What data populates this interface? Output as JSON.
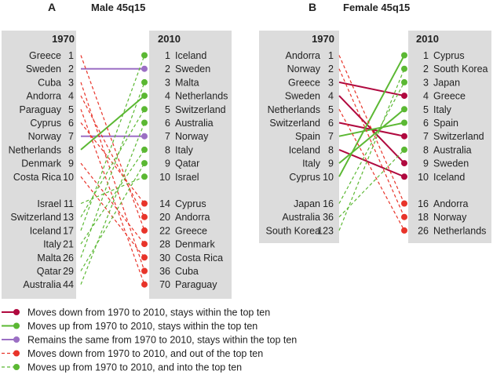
{
  "colors": {
    "panel_bg": "#dcdcdc",
    "dark_red": "#b0093f",
    "green": "#5bb833",
    "purple": "#9b6fc4",
    "red": "#e8342a"
  },
  "panels": [
    {
      "letter": "A",
      "title": "Male 45q15",
      "left_header": "1970",
      "right_header": "2010",
      "left_items": [
        {
          "name": "Greece",
          "rank": "1"
        },
        {
          "name": "Sweden",
          "rank": "2"
        },
        {
          "name": "Cuba",
          "rank": "3"
        },
        {
          "name": "Andorra",
          "rank": "4"
        },
        {
          "name": "Paraguay",
          "rank": "5"
        },
        {
          "name": "Cyprus",
          "rank": "6"
        },
        {
          "name": "Norway",
          "rank": "7"
        },
        {
          "name": "Netherlands",
          "rank": "8"
        },
        {
          "name": "Denmark",
          "rank": "9"
        },
        {
          "name": "Costa Rica",
          "rank": "10"
        },
        {
          "name": "Israel",
          "rank": "11"
        },
        {
          "name": "Switzerland",
          "rank": "13"
        },
        {
          "name": "Iceland",
          "rank": "17"
        },
        {
          "name": "Italy",
          "rank": "21"
        },
        {
          "name": "Malta",
          "rank": "26"
        },
        {
          "name": "Qatar",
          "rank": "29"
        },
        {
          "name": "Australia",
          "rank": "44"
        }
      ],
      "right_items": [
        {
          "rank": "1",
          "name": "Iceland"
        },
        {
          "rank": "2",
          "name": "Sweden"
        },
        {
          "rank": "3",
          "name": "Malta"
        },
        {
          "rank": "4",
          "name": "Netherlands"
        },
        {
          "rank": "5",
          "name": "Switzerland"
        },
        {
          "rank": "6",
          "name": "Australia"
        },
        {
          "rank": "7",
          "name": "Norway"
        },
        {
          "rank": "8",
          "name": "Italy"
        },
        {
          "rank": "9",
          "name": "Qatar"
        },
        {
          "rank": "10",
          "name": "Israel"
        },
        {
          "rank": "14",
          "name": "Cyprus"
        },
        {
          "rank": "20",
          "name": "Andorra"
        },
        {
          "rank": "22",
          "name": "Greece"
        },
        {
          "rank": "28",
          "name": "Denmark"
        },
        {
          "rank": "30",
          "name": "Costa Rica"
        },
        {
          "rank": "36",
          "name": "Cuba"
        },
        {
          "rank": "70",
          "name": "Paraguay"
        }
      ],
      "links": [
        {
          "from": "Sweden",
          "to": "Sweden",
          "category": "same"
        },
        {
          "from": "Norway",
          "to": "Norway",
          "category": "same"
        },
        {
          "from": "Netherlands",
          "to": "Netherlands",
          "category": "up_within"
        },
        {
          "from": "Greece",
          "to": "Greece",
          "category": "down_out"
        },
        {
          "from": "Cuba",
          "to": "Cuba",
          "category": "down_out"
        },
        {
          "from": "Andorra",
          "to": "Andorra",
          "category": "down_out"
        },
        {
          "from": "Paraguay",
          "to": "Paraguay",
          "category": "down_out"
        },
        {
          "from": "Cyprus",
          "to": "Cyprus",
          "category": "down_out"
        },
        {
          "from": "Denmark",
          "to": "Denmark",
          "category": "down_out"
        },
        {
          "from": "Costa Rica",
          "to": "Costa Rica",
          "category": "down_out"
        },
        {
          "from": "Israel",
          "to": "Israel",
          "category": "up_into"
        },
        {
          "from": "Switzerland",
          "to": "Switzerland",
          "category": "up_into"
        },
        {
          "from": "Iceland",
          "to": "Iceland",
          "category": "up_into"
        },
        {
          "from": "Italy",
          "to": "Italy",
          "category": "up_into"
        },
        {
          "from": "Malta",
          "to": "Malta",
          "category": "up_into"
        },
        {
          "from": "Qatar",
          "to": "Qatar",
          "category": "up_into"
        },
        {
          "from": "Australia",
          "to": "Australia",
          "category": "up_into"
        }
      ]
    },
    {
      "letter": "B",
      "title": "Female 45q15",
      "left_header": "1970",
      "right_header": "2010",
      "left_items": [
        {
          "name": "Andorra",
          "rank": "1"
        },
        {
          "name": "Norway",
          "rank": "2"
        },
        {
          "name": "Greece",
          "rank": "3"
        },
        {
          "name": "Sweden",
          "rank": "4"
        },
        {
          "name": "Netherlands",
          "rank": "5"
        },
        {
          "name": "Switzerland",
          "rank": "6"
        },
        {
          "name": "Spain",
          "rank": "7"
        },
        {
          "name": "Iceland",
          "rank": "8"
        },
        {
          "name": "Italy",
          "rank": "9"
        },
        {
          "name": "Cyprus",
          "rank": "10"
        },
        {
          "name": "Japan",
          "rank": "16"
        },
        {
          "name": "Australia",
          "rank": "36"
        },
        {
          "name": "South Korea",
          "rank": "123"
        }
      ],
      "right_items": [
        {
          "rank": "1",
          "name": "Cyprus"
        },
        {
          "rank": "2",
          "name": "South Korea"
        },
        {
          "rank": "3",
          "name": "Japan"
        },
        {
          "rank": "4",
          "name": "Greece"
        },
        {
          "rank": "5",
          "name": "Italy"
        },
        {
          "rank": "6",
          "name": "Spain"
        },
        {
          "rank": "7",
          "name": "Switzerland"
        },
        {
          "rank": "8",
          "name": "Australia"
        },
        {
          "rank": "9",
          "name": "Sweden"
        },
        {
          "rank": "10",
          "name": "Iceland"
        },
        {
          "rank": "16",
          "name": "Andorra"
        },
        {
          "rank": "18",
          "name": "Norway"
        },
        {
          "rank": "26",
          "name": "Netherlands"
        }
      ],
      "links": [
        {
          "from": "Greece",
          "to": "Greece",
          "category": "down_within"
        },
        {
          "from": "Sweden",
          "to": "Sweden",
          "category": "down_within"
        },
        {
          "from": "Switzerland",
          "to": "Switzerland",
          "category": "down_within"
        },
        {
          "from": "Iceland",
          "to": "Iceland",
          "category": "down_within"
        },
        {
          "from": "Cyprus",
          "to": "Cyprus",
          "category": "up_within"
        },
        {
          "from": "Italy",
          "to": "Italy",
          "category": "up_within"
        },
        {
          "from": "Spain",
          "to": "Spain",
          "category": "up_within"
        },
        {
          "from": "Andorra",
          "to": "Andorra",
          "category": "down_out"
        },
        {
          "from": "Norway",
          "to": "Norway",
          "category": "down_out"
        },
        {
          "from": "Netherlands",
          "to": "Netherlands",
          "category": "down_out"
        },
        {
          "from": "Japan",
          "to": "Japan",
          "category": "up_into"
        },
        {
          "from": "Australia",
          "to": "Australia",
          "category": "up_into"
        },
        {
          "from": "South Korea",
          "to": "South Korea",
          "category": "up_into"
        }
      ]
    }
  ],
  "legend": [
    {
      "category": "down_within",
      "label": "Moves down from 1970 to 2010, stays within the top ten"
    },
    {
      "category": "up_within",
      "label": "Moves up from 1970 to 2010, stays within the top ten"
    },
    {
      "category": "same",
      "label": "Remains the same from 1970 to 2010, stays within the top ten"
    },
    {
      "category": "down_out",
      "label": "Moves down from 1970 to 2010, and out of the top ten"
    },
    {
      "category": "up_into",
      "label": "Moves up from 1970 to 2010, and into the top ten"
    }
  ],
  "chart_data": [
    {
      "type": "slope",
      "title": "Male 45q15",
      "x": [
        "1970",
        "2010"
      ],
      "series": [
        {
          "name": "Greece",
          "values": [
            1,
            22
          ]
        },
        {
          "name": "Sweden",
          "values": [
            2,
            2
          ]
        },
        {
          "name": "Cuba",
          "values": [
            3,
            36
          ]
        },
        {
          "name": "Andorra",
          "values": [
            4,
            20
          ]
        },
        {
          "name": "Paraguay",
          "values": [
            5,
            70
          ]
        },
        {
          "name": "Cyprus",
          "values": [
            6,
            14
          ]
        },
        {
          "name": "Norway",
          "values": [
            7,
            7
          ]
        },
        {
          "name": "Netherlands",
          "values": [
            8,
            4
          ]
        },
        {
          "name": "Denmark",
          "values": [
            9,
            28
          ]
        },
        {
          "name": "Costa Rica",
          "values": [
            10,
            30
          ]
        },
        {
          "name": "Israel",
          "values": [
            11,
            10
          ]
        },
        {
          "name": "Switzerland",
          "values": [
            13,
            5
          ]
        },
        {
          "name": "Iceland",
          "values": [
            17,
            1
          ]
        },
        {
          "name": "Italy",
          "values": [
            21,
            8
          ]
        },
        {
          "name": "Malta",
          "values": [
            26,
            3
          ]
        },
        {
          "name": "Qatar",
          "values": [
            29,
            9
          ]
        },
        {
          "name": "Australia",
          "values": [
            44,
            6
          ]
        }
      ]
    },
    {
      "type": "slope",
      "title": "Female 45q15",
      "x": [
        "1970",
        "2010"
      ],
      "series": [
        {
          "name": "Andorra",
          "values": [
            1,
            16
          ]
        },
        {
          "name": "Norway",
          "values": [
            2,
            18
          ]
        },
        {
          "name": "Greece",
          "values": [
            3,
            4
          ]
        },
        {
          "name": "Sweden",
          "values": [
            4,
            9
          ]
        },
        {
          "name": "Netherlands",
          "values": [
            5,
            26
          ]
        },
        {
          "name": "Switzerland",
          "values": [
            6,
            7
          ]
        },
        {
          "name": "Spain",
          "values": [
            7,
            6
          ]
        },
        {
          "name": "Iceland",
          "values": [
            8,
            10
          ]
        },
        {
          "name": "Italy",
          "values": [
            9,
            5
          ]
        },
        {
          "name": "Cyprus",
          "values": [
            10,
            1
          ]
        },
        {
          "name": "Japan",
          "values": [
            16,
            3
          ]
        },
        {
          "name": "Australia",
          "values": [
            36,
            8
          ]
        },
        {
          "name": "South Korea",
          "values": [
            123,
            2
          ]
        }
      ]
    }
  ]
}
